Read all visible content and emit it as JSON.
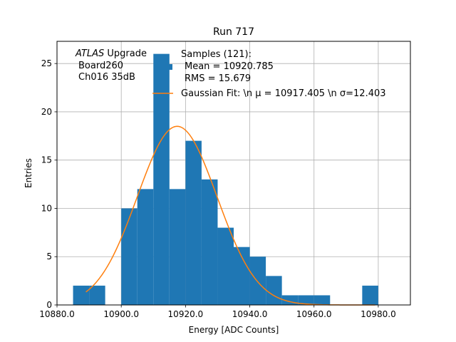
{
  "chart_data": {
    "type": "bar",
    "title": "Run 717",
    "xlabel": "Energy [ADC Counts]",
    "ylabel": "Entries",
    "xlim": [
      10880,
      10990
    ],
    "ylim": [
      0,
      27.3
    ],
    "grid": true,
    "x_tick_values": [
      10880,
      10900,
      10920,
      10940,
      10960,
      10980
    ],
    "x_tick_labels": [
      "10880.0",
      "10900.0",
      "10920.0",
      "10940.0",
      "10960.0",
      "10980.0"
    ],
    "y_tick_values": [
      0,
      5,
      10,
      15,
      20,
      25
    ],
    "y_tick_labels": [
      "0",
      "5",
      "10",
      "15",
      "20",
      "25"
    ],
    "bin_edges": [
      10885,
      10890,
      10895,
      10900,
      10905,
      10910,
      10915,
      10920,
      10925,
      10930,
      10935,
      10940,
      10945,
      10950,
      10955,
      10960,
      10965,
      10970,
      10975,
      10980
    ],
    "counts": [
      2,
      2,
      0,
      10,
      12,
      26,
      12,
      17,
      13,
      8,
      6,
      5,
      3,
      1,
      1,
      1,
      0,
      0,
      2
    ],
    "bar_color": "#1f77b4",
    "fit": {
      "mu": 10917.405,
      "sigma": 12.403,
      "amplitude": 18.5,
      "x_range": [
        10889,
        10979
      ],
      "color": "#ff7f0e"
    },
    "annotation": {
      "atlas_italic": "ATLAS",
      "atlas_rest": " Upgrade",
      "line2": "Board260",
      "line3": "Ch016 35dB"
    },
    "legend": {
      "position": "top-right",
      "samples_line1": "Samples (121):",
      "samples_line2": "Mean = 10920.785",
      "samples_line3": "RMS = 15.679",
      "fit_label": "Gaussian Fit: \\n μ = 10917.405 \\n σ=12.403"
    }
  }
}
